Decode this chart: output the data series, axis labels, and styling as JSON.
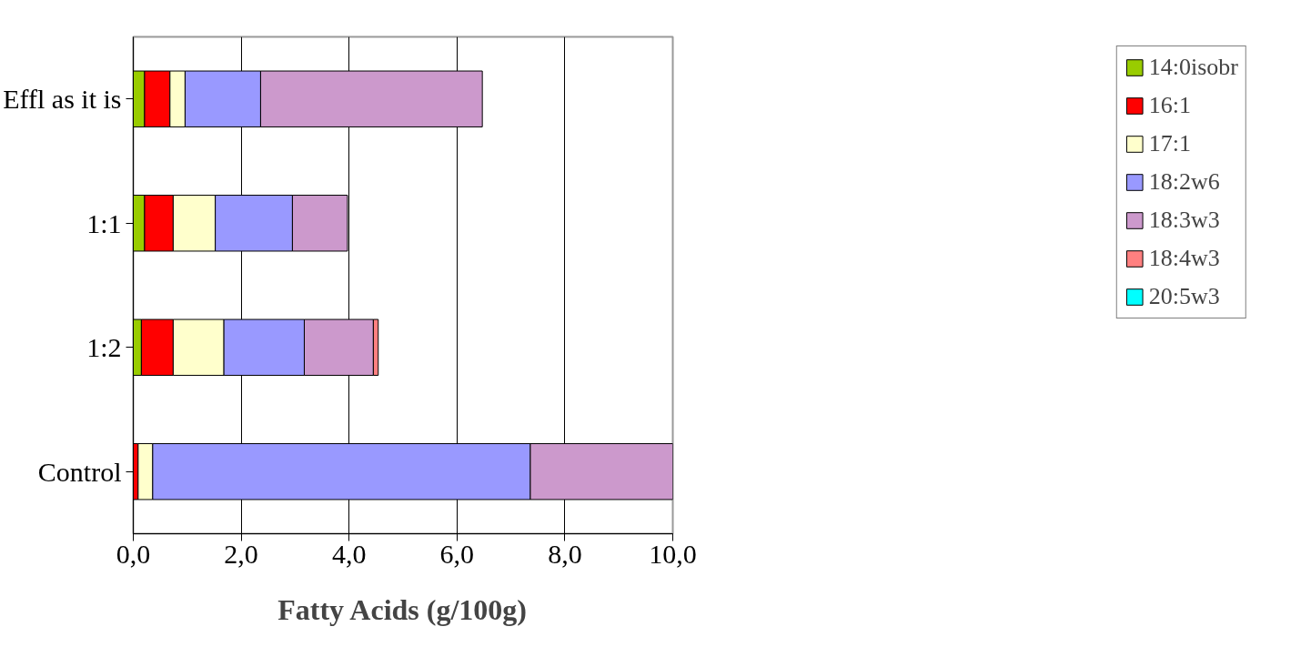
{
  "chart_data": {
    "type": "bar",
    "orientation": "horizontal",
    "stacked": true,
    "categories": [
      "Effl as it is",
      "1:1",
      "1:2",
      "Control"
    ],
    "xlabel": "Fatty Acids (g/100g)",
    "xlim": [
      0,
      10
    ],
    "xticks": [
      {
        "value": 0,
        "label": "0,0"
      },
      {
        "value": 2,
        "label": "2,0"
      },
      {
        "value": 4,
        "label": "4,0"
      },
      {
        "value": 6,
        "label": "6,0"
      },
      {
        "value": 8,
        "label": "8,0"
      },
      {
        "value": 10,
        "label": "10,0"
      }
    ],
    "grid": "x",
    "legend": "right",
    "series": [
      {
        "name": "14:0isobr",
        "color": "#99cc00",
        "values": [
          0.21,
          0.21,
          0.15,
          null
        ]
      },
      {
        "name": "16:1",
        "color": "#ff0000",
        "values": [
          0.47,
          0.53,
          0.59,
          0.09
        ]
      },
      {
        "name": "17:1",
        "color": "#ffffcc",
        "values": [
          0.28,
          0.78,
          0.94,
          0.27
        ]
      },
      {
        "name": "18:2w6",
        "color": "#9999ff",
        "values": [
          1.4,
          1.43,
          1.49,
          7.0
        ]
      },
      {
        "name": "18:3w3",
        "color": "#cc99cc",
        "values": [
          4.11,
          1.02,
          1.28,
          2.64
        ]
      },
      {
        "name": "18:4w3",
        "color": "#ff8080",
        "values": [
          null,
          null,
          0.09,
          null
        ]
      },
      {
        "name": "20:5w3",
        "color": "#00ffff",
        "values": [
          null,
          null,
          null,
          null
        ]
      }
    ]
  }
}
